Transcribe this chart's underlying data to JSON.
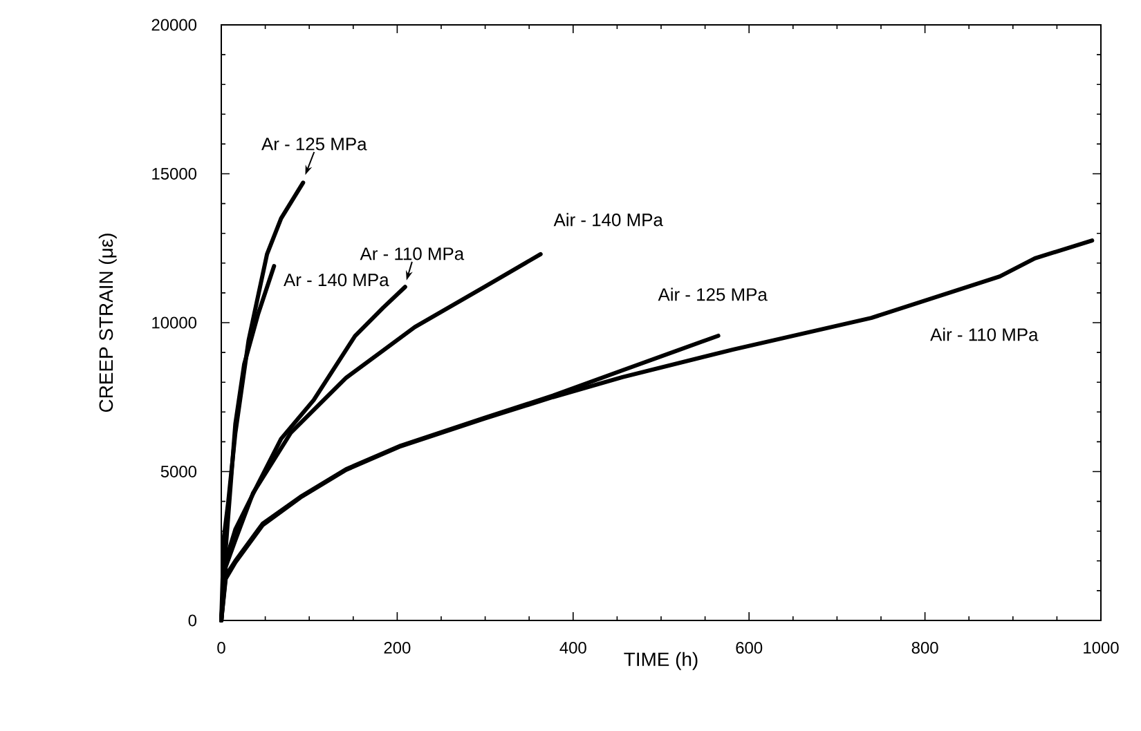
{
  "chart_data": {
    "type": "line",
    "xlabel": "TIME (h)",
    "ylabel": "CREEP STRAIN (με)",
    "xlim": [
      0,
      1000
    ],
    "ylim": [
      0,
      20000
    ],
    "xticks": [
      0,
      200,
      400,
      600,
      800,
      1000
    ],
    "yticks": [
      0,
      5000,
      10000,
      15000,
      20000
    ],
    "series": [
      {
        "name": "Ar - 125 MPa",
        "color": "#000000",
        "x": [
          0,
          3,
          8,
          16,
          31,
          52,
          68,
          93
        ],
        "values": [
          0,
          2800,
          4000,
          6300,
          9400,
          12300,
          13500,
          14700
        ]
      },
      {
        "name": "Ar - 140 MPa",
        "color": "#000000",
        "x": [
          0,
          5,
          16,
          26,
          42,
          60
        ],
        "values": [
          0,
          2400,
          6600,
          8600,
          10300,
          11900
        ]
      },
      {
        "name": "Ar - 110 MPa",
        "color": "#000000",
        "x": [
          0,
          5,
          16,
          42,
          68,
          105,
          152,
          184,
          209
        ],
        "values": [
          0,
          2000,
          3060,
          4600,
          6100,
          7400,
          9550,
          10500,
          11200
        ]
      },
      {
        "name": "Air - 140 MPa",
        "color": "#000000",
        "x": [
          0,
          5,
          16,
          36,
          79,
          142,
          220,
          299,
          363
        ],
        "values": [
          0,
          1800,
          2700,
          4270,
          6300,
          8150,
          9850,
          11200,
          12300
        ]
      },
      {
        "name": "Air - 125 MPa",
        "color": "#000000",
        "x": [
          0,
          5,
          16,
          47,
          90,
          142,
          204,
          299,
          377,
          456,
          565
        ],
        "values": [
          0,
          1500,
          2000,
          3250,
          4150,
          5080,
          5870,
          6800,
          7550,
          8400,
          9560
        ]
      },
      {
        "name": "Air - 110 MPa",
        "color": "#000000",
        "x": [
          0,
          5,
          16,
          47,
          90,
          142,
          204,
          299,
          377,
          456,
          582,
          739,
          885,
          925,
          990
        ],
        "values": [
          0,
          1400,
          1950,
          3200,
          4130,
          5060,
          5850,
          6780,
          7500,
          8170,
          9100,
          10160,
          11550,
          12160,
          12760
        ]
      }
    ]
  }
}
